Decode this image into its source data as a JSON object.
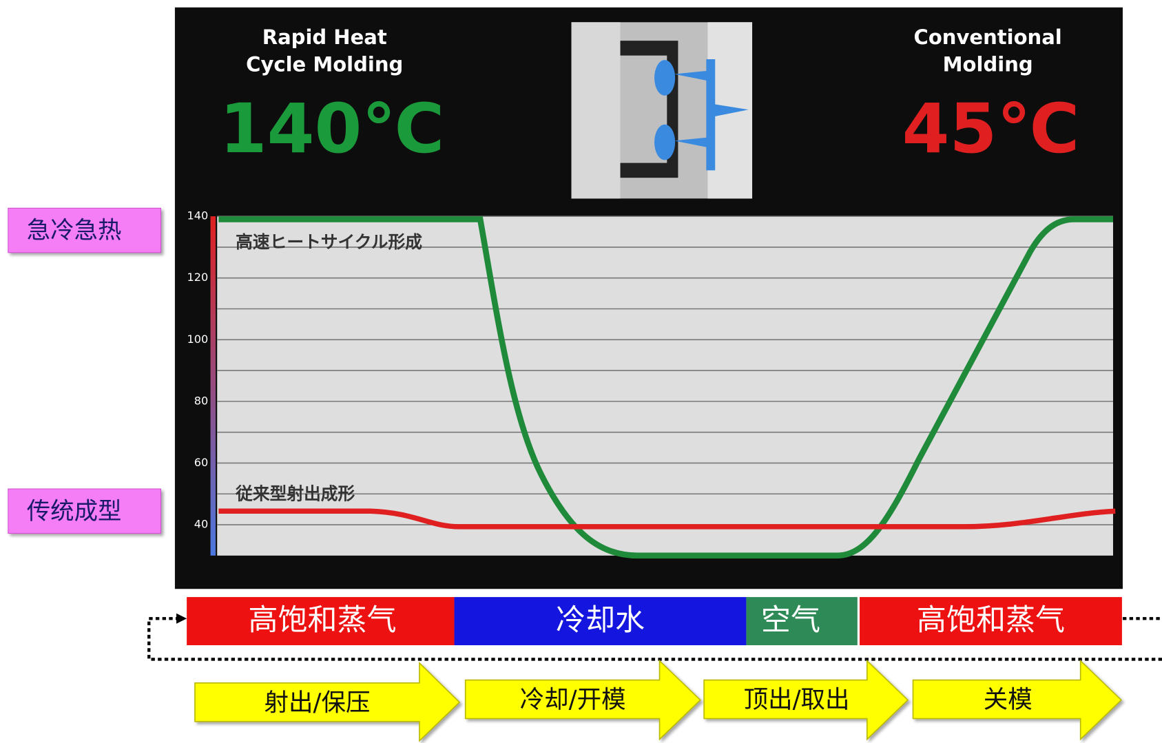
{
  "left_labels": [
    "急冷急热",
    "传统成型"
  ],
  "header": {
    "rapid": {
      "title_lines": [
        "Rapid Heat",
        "Cycle Molding"
      ],
      "temperature": "140℃"
    },
    "conventional": {
      "title_lines": [
        "Conventional",
        "Molding"
      ],
      "temperature": "45℃"
    }
  },
  "chart": {
    "ylim": [
      30,
      140
    ],
    "yticks": [
      40,
      60,
      80,
      100,
      120,
      140
    ],
    "curve_labels": [
      "高速ヒートサイクル形成",
      "従来型射出成形"
    ]
  },
  "phases": [
    "高饱和蒸气",
    "冷却水",
    "空气",
    "高饱和蒸气"
  ],
  "steps": [
    "射出/保压",
    "冷却/开模",
    "顶出/取出",
    "关模"
  ]
}
